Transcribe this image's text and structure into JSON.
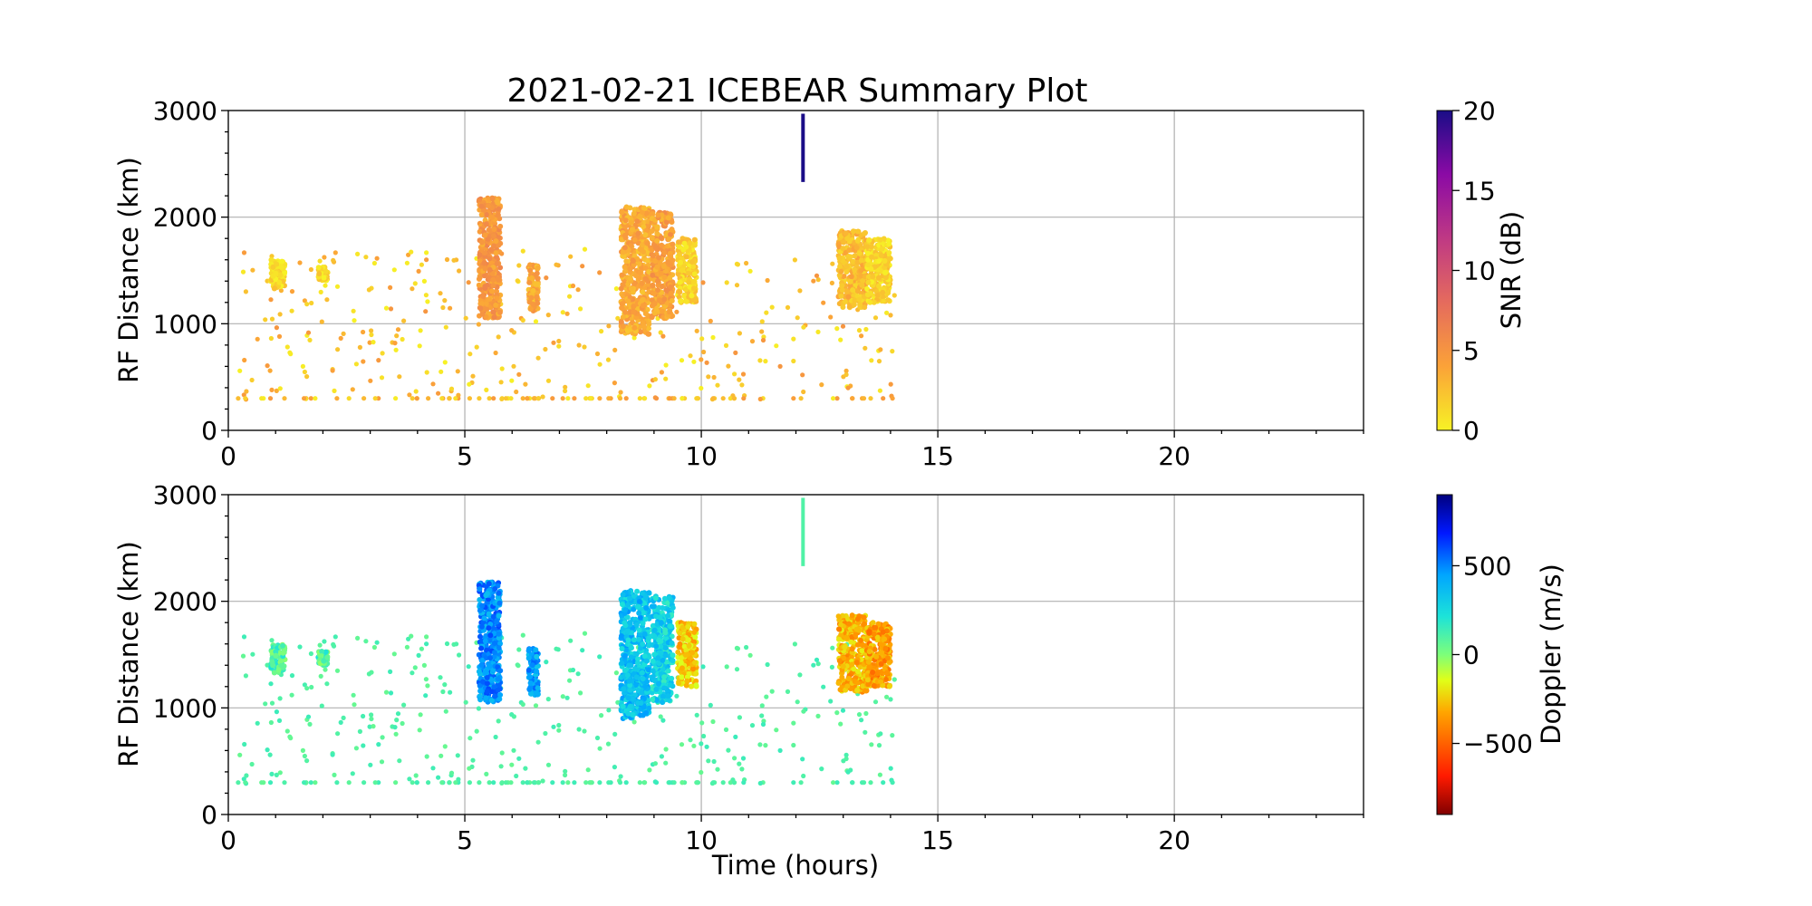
{
  "chart_data": [
    {
      "type": "scatter",
      "title": "2021-02-21 ICEBEAR Summary Plot",
      "xlabel": "",
      "ylabel": "RF Distance (km)",
      "xlim": [
        0,
        24
      ],
      "ylim": [
        0,
        3000
      ],
      "xticks": [
        "0",
        "5",
        "10",
        "15",
        "20"
      ],
      "yticks": [
        "0",
        "1000",
        "2000",
        "3000"
      ],
      "grid": true,
      "colorbar": {
        "label": "SNR (dB)",
        "range": [
          0,
          20
        ],
        "ticks": [
          "0",
          "5",
          "10",
          "15",
          "20"
        ],
        "colormap": "plasma_r"
      },
      "clusters": [
        {
          "t_start": 0.9,
          "t_end": 1.2,
          "r_min": 1330,
          "r_max": 1600,
          "value": 0.5
        },
        {
          "t_start": 1.9,
          "t_end": 2.1,
          "r_min": 1400,
          "r_max": 1530,
          "value": 0.5
        },
        {
          "t_start": 5.3,
          "t_end": 5.75,
          "r_min": 1050,
          "r_max": 2180,
          "value": 4
        },
        {
          "t_start": 6.35,
          "t_end": 6.55,
          "r_min": 1120,
          "r_max": 1560,
          "value": 3
        },
        {
          "t_start": 8.3,
          "t_end": 8.9,
          "r_min": 900,
          "r_max": 2100,
          "value": 3
        },
        {
          "t_start": 8.95,
          "t_end": 9.4,
          "r_min": 1050,
          "r_max": 2050,
          "value": 3.5
        },
        {
          "t_start": 9.5,
          "t_end": 9.9,
          "r_min": 1200,
          "r_max": 1800,
          "value": 1
        },
        {
          "t_start": 12.9,
          "t_end": 13.5,
          "r_min": 1150,
          "r_max": 1870,
          "value": 2
        },
        {
          "t_start": 13.5,
          "t_end": 14.0,
          "r_min": 1200,
          "r_max": 1800,
          "value": 0.8
        }
      ],
      "streak": {
        "t": 12.15,
        "r_min": 2330,
        "r_max": 2970,
        "value": 20
      },
      "scatter_extent": {
        "t_start": 0.2,
        "t_end": 14.1,
        "r_min": 290,
        "r_max": 1700,
        "value_range": [
          0,
          5
        ]
      }
    },
    {
      "type": "scatter",
      "title": "",
      "xlabel": "Time (hours)",
      "ylabel": "RF Distance (km)",
      "xlim": [
        0,
        24
      ],
      "ylim": [
        0,
        3000
      ],
      "xticks": [
        "0",
        "5",
        "10",
        "15",
        "20"
      ],
      "yticks": [
        "0",
        "1000",
        "2000",
        "3000"
      ],
      "grid": true,
      "colorbar": {
        "label": "Doppler (m/s)",
        "range": [
          -900,
          900
        ],
        "ticks": [
          "500",
          "0",
          "−500"
        ],
        "tick_values": [
          500,
          0,
          -500
        ],
        "colormap": "jet_r"
      },
      "clusters": [
        {
          "t_start": 0.9,
          "t_end": 1.2,
          "r_min": 1330,
          "r_max": 1600,
          "value": 100
        },
        {
          "t_start": 1.9,
          "t_end": 2.1,
          "r_min": 1400,
          "r_max": 1530,
          "value": 100
        },
        {
          "t_start": 5.3,
          "t_end": 5.75,
          "r_min": 1050,
          "r_max": 2180,
          "value": 480
        },
        {
          "t_start": 6.35,
          "t_end": 6.55,
          "r_min": 1120,
          "r_max": 1560,
          "value": 450
        },
        {
          "t_start": 8.3,
          "t_end": 8.9,
          "r_min": 900,
          "r_max": 2100,
          "value": 350
        },
        {
          "t_start": 8.95,
          "t_end": 9.4,
          "r_min": 1050,
          "r_max": 2050,
          "value": 280
        },
        {
          "t_start": 9.5,
          "t_end": 9.9,
          "r_min": 1200,
          "r_max": 1800,
          "value": -250
        },
        {
          "t_start": 12.9,
          "t_end": 13.5,
          "r_min": 1150,
          "r_max": 1870,
          "value": -300
        },
        {
          "t_start": 13.5,
          "t_end": 14.0,
          "r_min": 1200,
          "r_max": 1800,
          "value": -350
        }
      ],
      "streak": {
        "t": 12.15,
        "r_min": 2330,
        "r_max": 2970,
        "value": 100
      },
      "scatter_extent": {
        "t_start": 0.2,
        "t_end": 14.1,
        "r_min": 290,
        "r_max": 1700,
        "value_range": [
          50,
          150
        ]
      }
    }
  ]
}
